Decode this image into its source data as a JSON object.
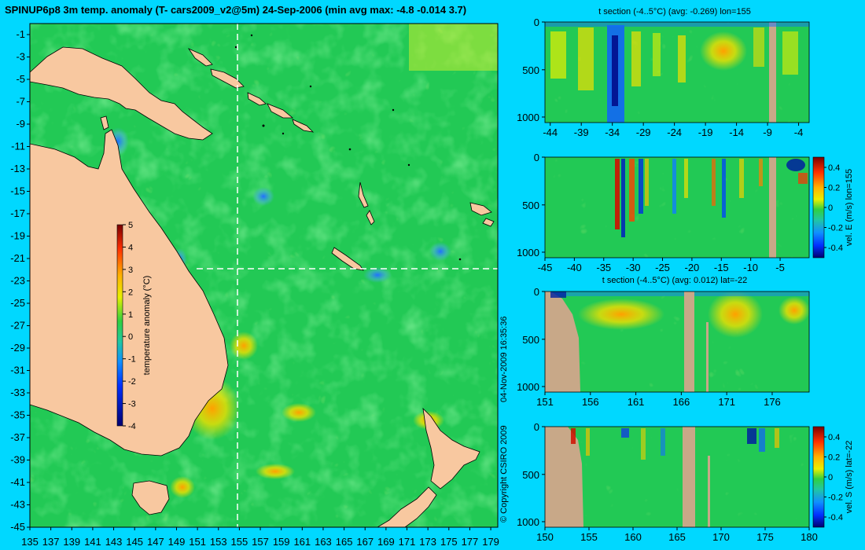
{
  "main_map": {
    "title": "SPINUP6p8 3m temp. anomaly (T- cars2009_v2@5m) 24-Sep-2006 (min avg max: -4.8 -0.014 3.7)",
    "lat_labels": [
      "-1",
      "-3",
      "-5",
      "-7",
      "-9",
      "-11",
      "-13",
      "-15",
      "-17",
      "-19",
      "-21",
      "-23",
      "-25",
      "-27",
      "-29",
      "-31",
      "-33",
      "-35",
      "-37",
      "-39",
      "-41",
      "-43",
      "-45"
    ],
    "lon_labels": [
      "135",
      "137",
      "139",
      "141",
      "143",
      "145",
      "147",
      "149",
      "151",
      "153",
      "155",
      "157",
      "159",
      "161",
      "163",
      "165",
      "167",
      "169",
      "171",
      "173",
      "175",
      "177",
      "179"
    ],
    "colorbar": {
      "label": "temperature anomaly (°C)",
      "ticks": [
        "5",
        "4",
        "3",
        "2",
        "1",
        "0",
        "-1",
        "-2",
        "-3",
        "-4"
      ]
    },
    "section_lines": {
      "lon": "155",
      "lat": "-22"
    }
  },
  "side_text": {
    "date": "04-Nov-2009 16:35:36",
    "copyright": "© Copyright CSIRO 2009"
  },
  "panels": [
    {
      "title": "t section (-4..5°C) (avg: -0.269) lon=155",
      "x_labels": [
        "-44",
        "-39",
        "-34",
        "-29",
        "-24",
        "-19",
        "-14",
        "-9",
        "-4"
      ],
      "y_labels": [
        "0",
        "500",
        "1000"
      ],
      "colorbar": null
    },
    {
      "title": "",
      "x_labels": [
        "-45",
        "-40",
        "-35",
        "-30",
        "-25",
        "-20",
        "-15",
        "-10",
        "-5"
      ],
      "y_labels": [
        "0",
        "500",
        "1000"
      ],
      "colorbar": {
        "label": "vel. E (m/s) lon=155",
        "ticks": [
          "0.4",
          "0.2",
          "0",
          "-0.2",
          "-0.4"
        ]
      }
    },
    {
      "title": "t section (-4..5°C) (avg: 0.012) lat=-22",
      "x_labels": [
        "151",
        "156",
        "161",
        "166",
        "171",
        "176"
      ],
      "y_labels": [
        "0",
        "500",
        "1000"
      ],
      "colorbar": null
    },
    {
      "title": "",
      "x_labels": [
        "150",
        "155",
        "160",
        "165",
        "170",
        "175",
        "180"
      ],
      "y_labels": [
        "0",
        "500",
        "1000"
      ],
      "colorbar": {
        "label": "vel. S (m/s) lat=-22",
        "ticks": [
          "0.4",
          "0.2",
          "0",
          "-0.2",
          "-0.4"
        ]
      }
    }
  ],
  "colors": {
    "background": "#00d8ff",
    "ocean": "#22c955",
    "land": "#f8c8a0",
    "section_land": "#c8a888"
  }
}
